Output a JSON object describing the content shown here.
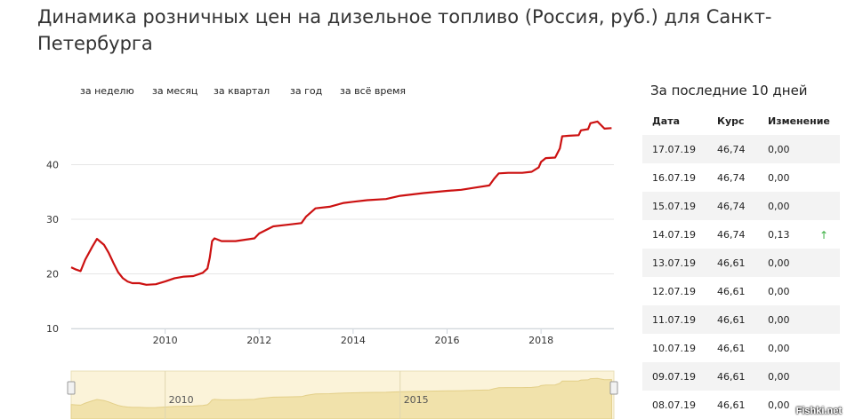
{
  "page": {
    "title": "Динамика розничных цен на дизельное топливо (Россия, руб.) для Санкт-Петербурга"
  },
  "tabs": [
    {
      "label": "за неделю"
    },
    {
      "label": "за месяц"
    },
    {
      "label": "за квартал"
    },
    {
      "label": "за год"
    },
    {
      "label": "за всё время"
    }
  ],
  "chart_data": {
    "type": "line",
    "title": "",
    "xlabel": "",
    "ylabel": "",
    "xlim": [
      2008.0,
      2019.55
    ],
    "ylim": [
      10,
      50
    ],
    "x_ticks": [
      2010,
      2012,
      2014,
      2016,
      2018
    ],
    "y_ticks": [
      10,
      20,
      30,
      40
    ],
    "grid": true,
    "line_color": "#cc1111",
    "series": [
      {
        "x": [
          2008.0,
          2008.1,
          2008.2,
          2008.3,
          2008.45,
          2008.55,
          2008.7,
          2008.8,
          2008.9,
          2009.0,
          2009.1,
          2009.2,
          2009.3,
          2009.45,
          2009.6,
          2009.8,
          2010.0,
          2010.2,
          2010.4,
          2010.6,
          2010.8,
          2010.9,
          2010.95,
          2011.0,
          2011.05,
          2011.2,
          2011.5,
          2011.9,
          2012.0,
          2012.3,
          2012.6,
          2012.9,
          2013.0,
          2013.2,
          2013.5,
          2013.8,
          2014.0,
          2014.3,
          2014.7,
          2015.0,
          2015.5,
          2016.0,
          2016.3,
          2016.6,
          2016.9,
          2017.0,
          2017.1,
          2017.3,
          2017.6,
          2017.8,
          2017.95,
          2018.0,
          2018.1,
          2018.3,
          2018.4,
          2018.45,
          2018.6,
          2018.8,
          2018.85,
          2019.0,
          2019.05,
          2019.2,
          2019.35,
          2019.5
        ],
        "y": [
          21.2,
          20.8,
          20.5,
          22.6,
          25.0,
          26.4,
          25.3,
          23.8,
          22.0,
          20.3,
          19.2,
          18.6,
          18.3,
          18.3,
          18.0,
          18.1,
          18.6,
          19.2,
          19.5,
          19.6,
          20.2,
          21.0,
          23.0,
          26.0,
          26.5,
          26.0,
          26.0,
          26.5,
          27.4,
          28.7,
          29.0,
          29.3,
          30.5,
          32.0,
          32.3,
          33.0,
          33.2,
          33.5,
          33.7,
          34.3,
          34.8,
          35.2,
          35.4,
          35.8,
          36.2,
          37.4,
          38.4,
          38.5,
          38.5,
          38.7,
          39.5,
          40.5,
          41.2,
          41.3,
          43.0,
          45.2,
          45.3,
          45.4,
          46.3,
          46.5,
          47.6,
          47.9,
          46.6,
          46.7
        ]
      }
    ],
    "navigator": {
      "labels": [
        "2010",
        "2015"
      ]
    }
  },
  "side_panel": {
    "title": "За последние 10 дней",
    "headers": {
      "date": "Дата",
      "rate": "Курс",
      "change": "Изменение"
    },
    "rows": [
      {
        "date": "17.07.19",
        "rate": "46,74",
        "change": "0,00",
        "arrow": ""
      },
      {
        "date": "16.07.19",
        "rate": "46,74",
        "change": "0,00",
        "arrow": ""
      },
      {
        "date": "15.07.19",
        "rate": "46,74",
        "change": "0,00",
        "arrow": ""
      },
      {
        "date": "14.07.19",
        "rate": "46,74",
        "change": "0,13",
        "arrow": "↑"
      },
      {
        "date": "13.07.19",
        "rate": "46,61",
        "change": "0,00",
        "arrow": ""
      },
      {
        "date": "12.07.19",
        "rate": "46,61",
        "change": "0,00",
        "arrow": ""
      },
      {
        "date": "11.07.19",
        "rate": "46,61",
        "change": "0,00",
        "arrow": ""
      },
      {
        "date": "10.07.19",
        "rate": "46,61",
        "change": "0,00",
        "arrow": ""
      },
      {
        "date": "09.07.19",
        "rate": "46,61",
        "change": "0,00",
        "arrow": ""
      },
      {
        "date": "08.07.19",
        "rate": "46,61",
        "change": "0,00",
        "arrow": ""
      }
    ]
  },
  "watermark": "Fishki.net"
}
